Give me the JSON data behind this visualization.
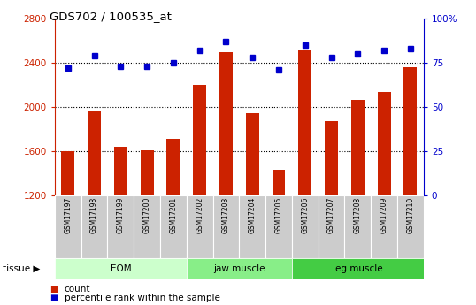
{
  "title": "GDS702 / 100535_at",
  "samples": [
    "GSM17197",
    "GSM17198",
    "GSM17199",
    "GSM17200",
    "GSM17201",
    "GSM17202",
    "GSM17203",
    "GSM17204",
    "GSM17205",
    "GSM17206",
    "GSM17207",
    "GSM17208",
    "GSM17209",
    "GSM17210"
  ],
  "counts": [
    1595,
    1960,
    1640,
    1605,
    1710,
    2200,
    2490,
    1940,
    1430,
    2510,
    1870,
    2060,
    2130,
    2360
  ],
  "percentiles": [
    72,
    79,
    73,
    73,
    75,
    82,
    87,
    78,
    71,
    85,
    78,
    80,
    82,
    83
  ],
  "ylim_left": [
    1200,
    2800
  ],
  "ylim_right": [
    0,
    100
  ],
  "yticks_left": [
    1200,
    1600,
    2000,
    2400,
    2800
  ],
  "yticks_right": [
    0,
    25,
    50,
    75,
    100
  ],
  "bar_color": "#cc2200",
  "dot_color": "#0000cc",
  "tissue_groups": [
    {
      "label": "EOM",
      "start": 0,
      "end": 5,
      "color": "#ccffcc"
    },
    {
      "label": "jaw muscle",
      "start": 5,
      "end": 9,
      "color": "#88ee88"
    },
    {
      "label": "leg muscle",
      "start": 9,
      "end": 14,
      "color": "#44cc44"
    }
  ],
  "bar_bottom": 1200,
  "legend_count": "count",
  "legend_pct": "percentile rank within the sample",
  "gridline_vals": [
    1600,
    2000,
    2400
  ],
  "sample_bg": "#cccccc"
}
